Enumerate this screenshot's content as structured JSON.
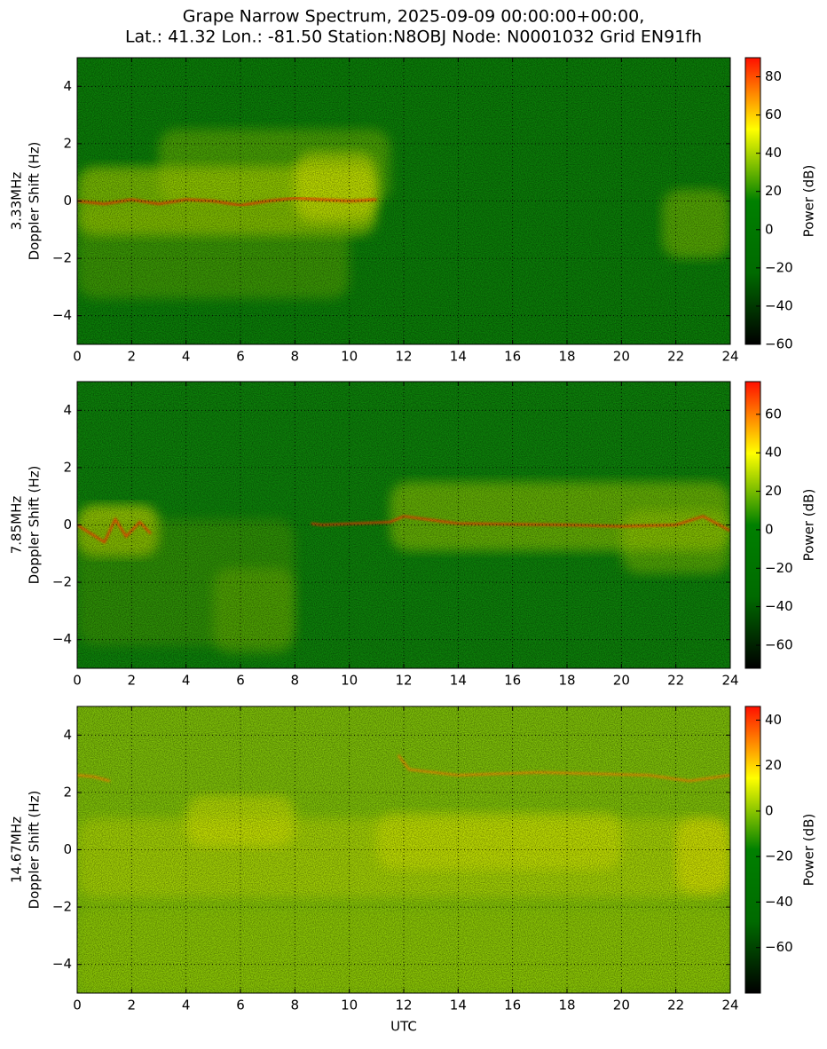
{
  "title": [
    "Grape Narrow Spectrum, 2025-09-09 00:00:00+00:00,",
    "Lat.: 41.32 Lon.: -81.50 Station:N8OBJ Node: N0001032 Grid EN91fh"
  ],
  "chart_data": [
    {
      "type": "heatmap",
      "ylabel": [
        "3.33MHz",
        "Doppler Shift (Hz)"
      ],
      "colorbar_label": "Power (dB)",
      "xlim": [
        0,
        24
      ],
      "xticks": [
        0,
        2,
        4,
        6,
        8,
        10,
        12,
        14,
        16,
        18,
        20,
        22,
        24
      ],
      "ylim": [
        -5,
        5
      ],
      "yticks": [
        {
          "value": -4,
          "label": "−4"
        },
        {
          "value": -2,
          "label": "−2"
        },
        0,
        2,
        4
      ],
      "clim": [
        -60,
        90
      ],
      "cticks": [
        {
          "value": -60,
          "label": "−60"
        },
        {
          "value": -40,
          "label": "−40"
        },
        {
          "value": -20,
          "label": "−20"
        },
        0,
        20,
        40,
        60,
        80
      ],
      "colormap": [
        "#000000",
        "#006a00",
        "#008000",
        "#ffff00",
        "#ff1000"
      ],
      "grid": true
    },
    {
      "type": "heatmap",
      "ylabel": [
        "7.85MHz",
        "Doppler Shift (Hz)"
      ],
      "colorbar_label": "Power (dB)",
      "xlim": [
        0,
        24
      ],
      "xticks": [
        0,
        2,
        4,
        6,
        8,
        10,
        12,
        14,
        16,
        18,
        20,
        22,
        24
      ],
      "ylim": [
        -5,
        5
      ],
      "yticks": [
        {
          "value": -4,
          "label": "−4"
        },
        {
          "value": -2,
          "label": "−2"
        },
        0,
        2,
        4
      ],
      "clim": [
        -72,
        77
      ],
      "cticks": [
        {
          "value": -60,
          "label": "−60"
        },
        {
          "value": -40,
          "label": "−40"
        },
        {
          "value": -20,
          "label": "−20"
        },
        0,
        20,
        40,
        60
      ],
      "colormap": [
        "#000000",
        "#006a00",
        "#008000",
        "#ffff00",
        "#ff1000"
      ],
      "grid": true
    },
    {
      "type": "heatmap",
      "ylabel": [
        "14.67MHz",
        "Doppler Shift (Hz)"
      ],
      "colorbar_label": "Power (dB)",
      "xlabel": "UTC",
      "xlim": [
        0,
        24
      ],
      "xticks": [
        0,
        2,
        4,
        6,
        8,
        10,
        12,
        14,
        16,
        18,
        20,
        22,
        24
      ],
      "ylim": [
        -5,
        5
      ],
      "yticks": [
        {
          "value": -4,
          "label": "−4"
        },
        {
          "value": -2,
          "label": "−2"
        },
        0,
        2,
        4
      ],
      "clim": [
        -80,
        46
      ],
      "cticks": [
        {
          "value": -60,
          "label": "−60"
        },
        {
          "value": -40,
          "label": "−40"
        },
        {
          "value": -20,
          "label": "−20"
        },
        0,
        20,
        40
      ],
      "colormap": [
        "#000000",
        "#006a00",
        "#008000",
        "#ffff00",
        "#ff1000"
      ],
      "grid": true
    }
  ]
}
